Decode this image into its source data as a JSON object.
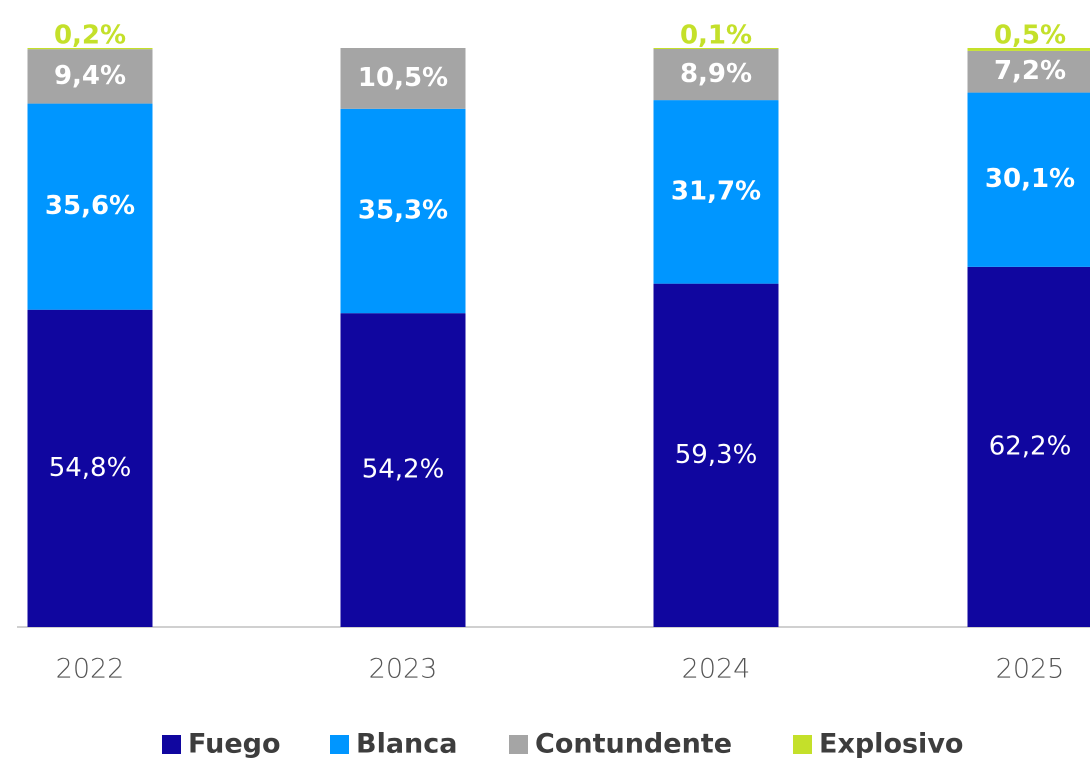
{
  "chart_data": {
    "type": "stacked_bar",
    "categories": [
      "2022",
      "2023",
      "2024",
      "2025"
    ],
    "ylim": [
      0,
      100
    ],
    "series": [
      {
        "name": "Fuego",
        "color": "#10069f",
        "values": [
          54.8,
          54.2,
          59.3,
          62.2
        ],
        "value_labels": [
          "54,8%",
          "54,2%",
          "59,3%",
          "62,2%"
        ]
      },
      {
        "name": "Blanca",
        "color": "#0096ff",
        "values": [
          35.6,
          35.3,
          31.7,
          30.1
        ],
        "value_labels": [
          "35,6%",
          "35,3%",
          "31,7%",
          "30,1%"
        ]
      },
      {
        "name": "Contundente",
        "color": "#a5a5a5",
        "values": [
          9.4,
          10.5,
          8.9,
          7.2
        ],
        "value_labels": [
          "9,4%",
          "10,5%",
          "8,9%",
          "7,2%"
        ]
      },
      {
        "name": "Explosivo",
        "color": "#c4e02a",
        "values": [
          0.2,
          null,
          0.1,
          0.5
        ],
        "value_labels": [
          "0,2%",
          null,
          "0,1%",
          "0,5%"
        ]
      }
    ],
    "legend": "bottom"
  }
}
